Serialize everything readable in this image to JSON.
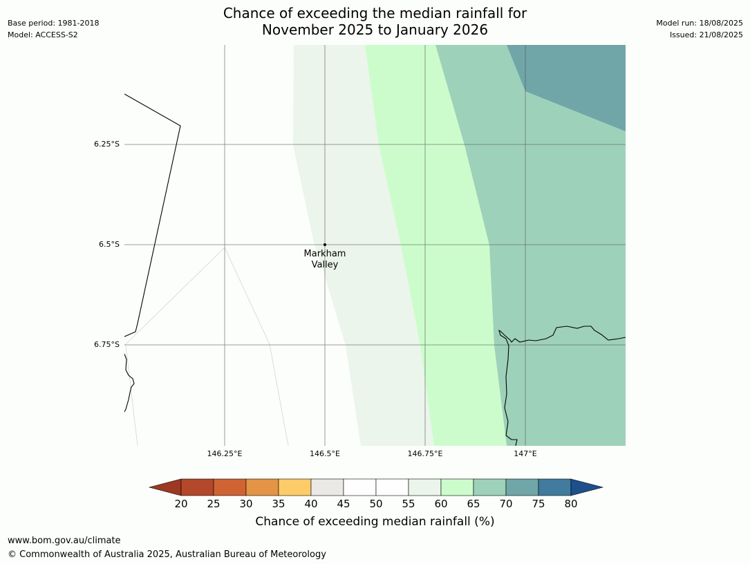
{
  "header": {
    "title_line1": "Chance of exceeding the median rainfall for",
    "title_line2": "November 2025 to January 2026",
    "base_period": "Base period: 1981-2018",
    "model": "Model: ACCESS-S2",
    "model_run": "Model run: 18/08/2025",
    "issued": "Issued: 21/08/2025"
  },
  "map": {
    "lat_labels": [
      "6.25°S",
      "6.5°S",
      "6.75°S"
    ],
    "lon_labels": [
      "146.25°E",
      "146.5°E",
      "146.75°E",
      "147°E"
    ],
    "place": {
      "name_line1": "Markham",
      "name_line2": "Valley"
    },
    "zone_colors": {
      "band_45_50": "#fcfefb",
      "band_55_60": "#ebf5eb",
      "band_60_65": "#ccfccc",
      "band_65_70": "#9ed1ba",
      "band_70_75": "#70a6a8"
    }
  },
  "colorbar": {
    "ticks": [
      "20",
      "25",
      "30",
      "35",
      "40",
      "45",
      "50",
      "55",
      "60",
      "65",
      "70",
      "75",
      "80"
    ],
    "colors": [
      "#9d3823",
      "#b4482a",
      "#cf6432",
      "#e49445",
      "#fecb69",
      "#eae9e5",
      "#fefefe",
      "#fefefe",
      "#ebf5eb",
      "#ccfccc",
      "#9ed1ba",
      "#70a6a8",
      "#417b9e",
      "#1d4f8a"
    ],
    "title": "Chance of exceeding median rainfall (%)"
  },
  "footer": {
    "url": "www.bom.gov.au/climate",
    "copyright": "© Commonwealth of Australia 2025, Australian Bureau of Meteorology"
  }
}
